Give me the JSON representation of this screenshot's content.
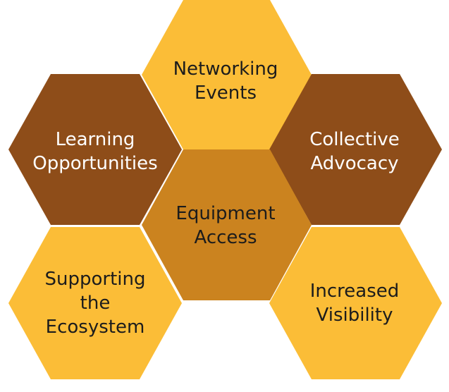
{
  "colors": {
    "yellow": "#fbbd37",
    "orange": "#cb831f",
    "brown": "#8e4d19"
  },
  "hexagons": [
    {
      "id": "networking",
      "lines": [
        "Networking",
        "Events"
      ],
      "fill": "yellow",
      "text": "dark"
    },
    {
      "id": "learning",
      "lines": [
        "Learning",
        "Opportunities"
      ],
      "fill": "brown",
      "text": "light"
    },
    {
      "id": "collective",
      "lines": [
        "Collective",
        "Advocacy"
      ],
      "fill": "brown",
      "text": "light"
    },
    {
      "id": "equipment",
      "lines": [
        "Equipment",
        "Access"
      ],
      "fill": "orange",
      "text": "dark"
    },
    {
      "id": "supporting",
      "lines": [
        "Supporting",
        "the",
        "Ecosystem"
      ],
      "fill": "yellow",
      "text": "dark"
    },
    {
      "id": "visibility",
      "lines": [
        "Increased",
        "Visibility"
      ],
      "fill": "yellow",
      "text": "dark"
    }
  ]
}
